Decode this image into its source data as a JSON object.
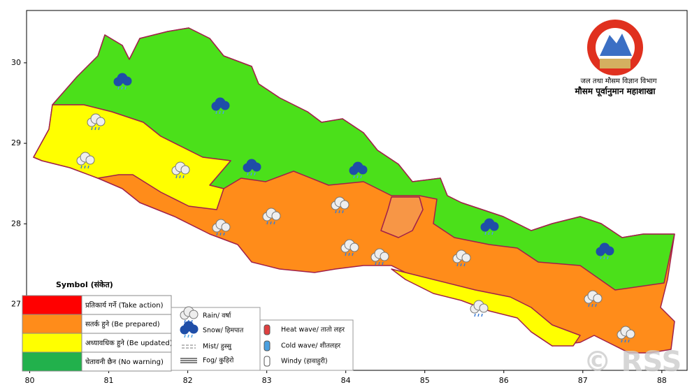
{
  "map": {
    "xlim": [
      79.96,
      88.32
    ],
    "ylim": [
      26.18,
      30.65
    ],
    "xticks": [
      80,
      81,
      82,
      83,
      84,
      85,
      86,
      87,
      88
    ],
    "yticks": [
      27,
      28,
      29,
      30
    ]
  },
  "header": {
    "department": "जल तथा मौसम विज्ञान विभाग",
    "division": "मौसम पूर्वानुमान महाशाखा"
  },
  "legend": {
    "title": "Symbol (संकेत)",
    "levels": [
      {
        "label": "प्रतिकार्य गर्ने (Take action)",
        "color": "#ff0000"
      },
      {
        "label": "सतर्क हुने (Be prepared)",
        "color": "#ff8c1a"
      },
      {
        "label": "अध्यावधिक हुने (Be updated)",
        "color": "#ffff00"
      },
      {
        "label": "चेतावनी छैन (No warning)",
        "color": "#22b14c"
      }
    ]
  },
  "symbols": [
    "Rain/ वर्षा",
    "Snow/ हिमपात",
    "Mist/ हुस्सु",
    "Fog/ कुहिरो",
    "Heat wave/ तातो लहर",
    "Cold wave/ शीतलहर",
    "Windy (हावाहुरी)"
  ],
  "watermark": "© RSS"
}
